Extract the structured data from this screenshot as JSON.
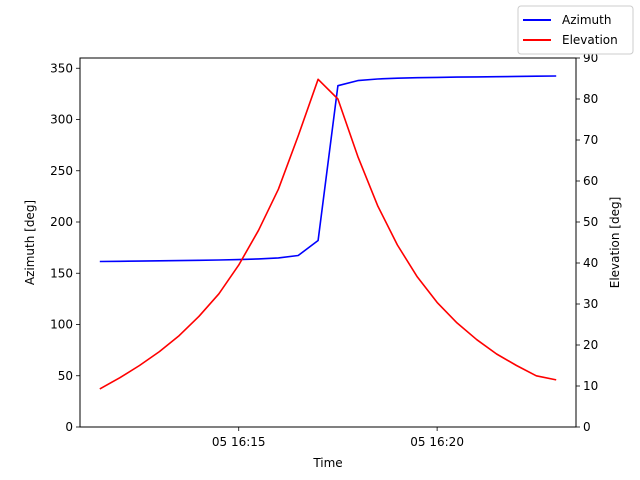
{
  "chart_data": {
    "type": "line",
    "xlabel": "Time",
    "x_ticks": [
      "05 16:15",
      "05 16:20"
    ],
    "x_tick_minutes": [
      15,
      20
    ],
    "x": [
      "16:11:30",
      "16:12:00",
      "16:12:30",
      "16:13:00",
      "16:13:30",
      "16:14:00",
      "16:14:30",
      "16:15:00",
      "16:15:30",
      "16:16:00",
      "16:16:30",
      "16:17:00",
      "16:17:30",
      "16:18:00",
      "16:18:30",
      "16:19:00",
      "16:19:30",
      "16:20:00",
      "16:20:30",
      "16:21:00",
      "16:21:30",
      "16:22:00",
      "16:22:30",
      "16:23:00"
    ],
    "xlim": [
      "16:11:00",
      "16:23:30"
    ],
    "y_left": {
      "label": "Azimuth [deg]",
      "lim": [
        0,
        360
      ],
      "ticks": [
        0,
        50,
        100,
        150,
        200,
        250,
        300,
        350
      ]
    },
    "y_right": {
      "label": "Elevation [deg]",
      "lim": [
        0,
        90
      ],
      "ticks": [
        0,
        10,
        20,
        30,
        40,
        50,
        60,
        70,
        80,
        90
      ]
    },
    "series": [
      {
        "name": "Azimuth",
        "axis": "left",
        "color": "#0000ff",
        "values": [
          161.5,
          161.7,
          161.9,
          162.1,
          162.3,
          162.6,
          162.9,
          163.3,
          164.0,
          165.0,
          167.3,
          182.0,
          333.0,
          338.0,
          339.5,
          340.3,
          340.8,
          341.1,
          341.4,
          341.6,
          341.8,
          342.0,
          342.2,
          342.4
        ]
      },
      {
        "name": "Elevation",
        "axis": "right",
        "color": "#ff0000",
        "values": [
          9.3,
          12.0,
          15.0,
          18.4,
          22.3,
          27.0,
          32.5,
          39.5,
          48.0,
          58.0,
          71.0,
          84.8,
          80.0,
          66.0,
          54.0,
          44.4,
          36.6,
          30.4,
          25.4,
          21.3,
          17.8,
          15.0,
          12.5,
          11.5
        ]
      }
    ],
    "legend": {
      "position": "top-right"
    },
    "grid": false
  }
}
